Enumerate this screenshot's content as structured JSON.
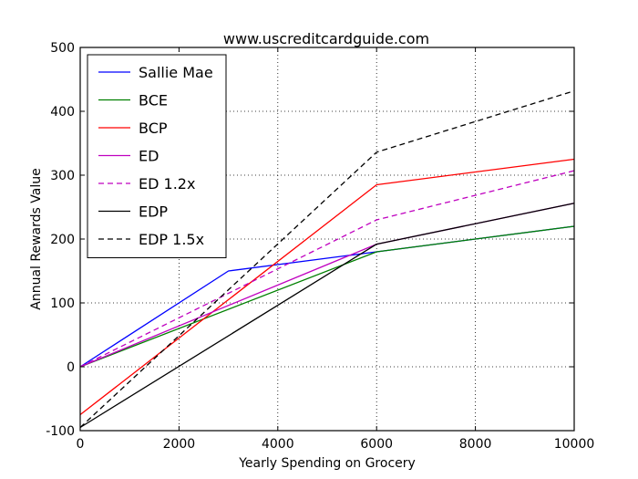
{
  "chart_data": {
    "type": "line",
    "title": "www.uscreditcardguide.com",
    "xlabel": "Yearly Spending on Grocery",
    "ylabel": "Annual Rewards Value",
    "xlim": [
      0,
      10000
    ],
    "ylim": [
      -100,
      500
    ],
    "xticks": [
      0,
      2000,
      4000,
      6000,
      8000,
      10000
    ],
    "yticks": [
      -100,
      0,
      100,
      200,
      300,
      400,
      500
    ],
    "grid": true,
    "legend_position": "top-left",
    "series": [
      {
        "name": "Sallie Mae",
        "color": "#0000ff",
        "dash": "solid",
        "x": [
          0,
          3000,
          6000,
          10000
        ],
        "y": [
          0,
          150,
          180,
          220
        ]
      },
      {
        "name": "BCE",
        "color": "#008000",
        "dash": "solid",
        "x": [
          0,
          6000,
          10000
        ],
        "y": [
          0,
          180,
          220
        ]
      },
      {
        "name": "BCP",
        "color": "#ff0000",
        "dash": "solid",
        "x": [
          0,
          6000,
          10000
        ],
        "y": [
          -75,
          285,
          325
        ]
      },
      {
        "name": "ED",
        "color": "#bf00bf",
        "dash": "solid",
        "x": [
          0,
          6000,
          10000
        ],
        "y": [
          0,
          192,
          256
        ]
      },
      {
        "name": "ED 1.2x",
        "color": "#bf00bf",
        "dash": "dashed",
        "x": [
          0,
          6000,
          10000
        ],
        "y": [
          0,
          230,
          307
        ]
      },
      {
        "name": "EDP",
        "color": "#000000",
        "dash": "solid",
        "x": [
          0,
          6000,
          10000
        ],
        "y": [
          -95,
          192,
          256
        ]
      },
      {
        "name": "EDP 1.5x",
        "color": "#000000",
        "dash": "dashed",
        "x": [
          0,
          6000,
          10000
        ],
        "y": [
          -95,
          336,
          432
        ]
      }
    ]
  }
}
